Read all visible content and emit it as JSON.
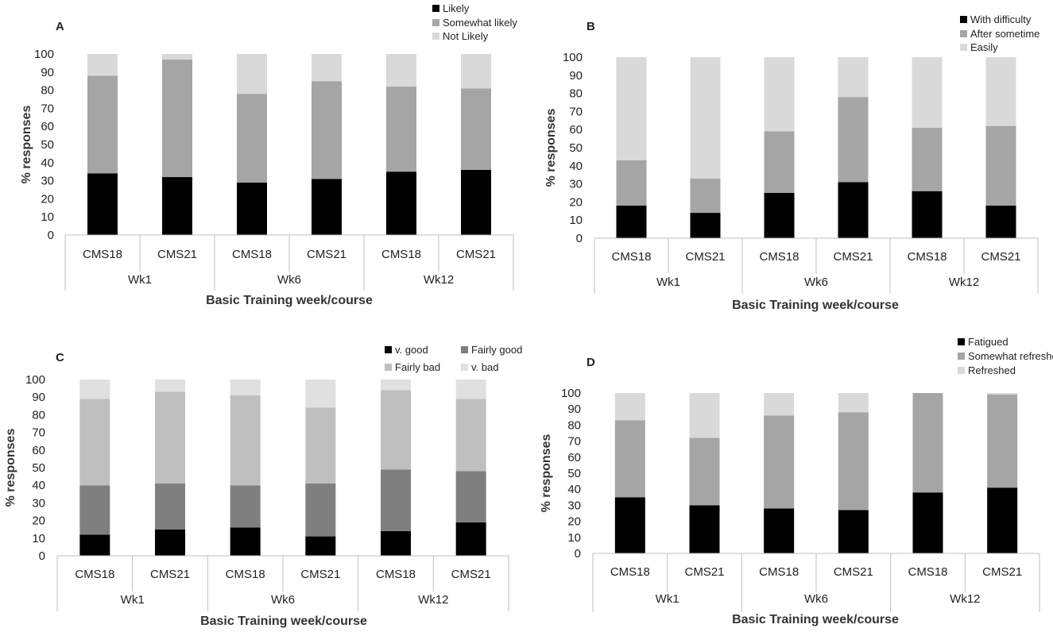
{
  "chart_data": [
    {
      "panel": "A",
      "type": "bar",
      "stacked": true,
      "ylabel": "% responses",
      "xlabel": "Basic Training week/course",
      "ylim": [
        0,
        100
      ],
      "yticks": [
        0,
        10,
        20,
        30,
        40,
        50,
        60,
        70,
        80,
        90,
        100
      ],
      "groups": [
        "Wk1",
        "Wk6",
        "Wk12"
      ],
      "categories": [
        "CMS18",
        "CMS21",
        "CMS18",
        "CMS21",
        "CMS18",
        "CMS21"
      ],
      "legend_position": "top-right",
      "series": [
        {
          "name": "Likely",
          "color": "#000000",
          "values": [
            34,
            32,
            29,
            31,
            35,
            36
          ]
        },
        {
          "name": "Somewhat likely",
          "color": "#a5a5a5",
          "values": [
            54,
            65,
            49,
            54,
            47,
            45
          ]
        },
        {
          "name": "Not Likely",
          "color": "#d9d9d9",
          "values": [
            12,
            3,
            22,
            15,
            18,
            19
          ]
        }
      ]
    },
    {
      "panel": "B",
      "type": "bar",
      "stacked": true,
      "ylabel": "% responses",
      "xlabel": "Basic Training week/course",
      "ylim": [
        0,
        100
      ],
      "yticks": [
        0,
        10,
        20,
        30,
        40,
        50,
        60,
        70,
        80,
        90,
        100
      ],
      "groups": [
        "Wk1",
        "Wk6",
        "Wk12"
      ],
      "categories": [
        "CMS18",
        "CMS21",
        "CMS18",
        "CMS21",
        "CMS18",
        "CMS21"
      ],
      "legend_position": "top-right",
      "series": [
        {
          "name": "With difficulty",
          "color": "#000000",
          "values": [
            18,
            14,
            25,
            31,
            26,
            18
          ]
        },
        {
          "name": "After sometime",
          "color": "#a5a5a5",
          "values": [
            25,
            19,
            34,
            47,
            35,
            44
          ]
        },
        {
          "name": "Easily",
          "color": "#d9d9d9",
          "values": [
            57,
            67,
            41,
            22,
            39,
            38
          ]
        }
      ]
    },
    {
      "panel": "C",
      "type": "bar",
      "stacked": true,
      "ylabel": "% responses",
      "xlabel": "Basic Training week/course",
      "ylim": [
        0,
        100
      ],
      "yticks": [
        0,
        10,
        20,
        30,
        40,
        50,
        60,
        70,
        80,
        90,
        100
      ],
      "groups": [
        "Wk1",
        "Wk6",
        "Wk12"
      ],
      "categories": [
        "CMS18",
        "CMS21",
        "CMS18",
        "CMS21",
        "CMS18",
        "CMS21"
      ],
      "legend_position": "top-right",
      "series": [
        {
          "name": "v. good",
          "color": "#000000",
          "values": [
            12,
            15,
            16,
            11,
            14,
            19
          ]
        },
        {
          "name": "Fairly good",
          "color": "#7f7f7f",
          "values": [
            28,
            26,
            24,
            30,
            35,
            29
          ]
        },
        {
          "name": "Fairly bad",
          "color": "#bfbfbf",
          "values": [
            49,
            52,
            51,
            43,
            45,
            41
          ]
        },
        {
          "name": "v. bad",
          "color": "#e0e0e0",
          "values": [
            11,
            7,
            9,
            16,
            6,
            11
          ]
        }
      ]
    },
    {
      "panel": "D",
      "type": "bar",
      "stacked": true,
      "ylabel": "% responses",
      "xlabel": "Basic Training week/course",
      "ylim": [
        0,
        100
      ],
      "yticks": [
        0,
        10,
        20,
        30,
        40,
        50,
        60,
        70,
        80,
        90,
        100
      ],
      "groups": [
        "Wk1",
        "Wk6",
        "Wk12"
      ],
      "categories": [
        "CMS18",
        "CMS21",
        "CMS18",
        "CMS21",
        "CMS18",
        "CMS21"
      ],
      "legend_position": "top-right",
      "series": [
        {
          "name": "Fatigued",
          "color": "#000000",
          "values": [
            35,
            30,
            28,
            27,
            38,
            41
          ]
        },
        {
          "name": "Somewhat refreshed",
          "color": "#a5a5a5",
          "values": [
            48,
            42,
            58,
            61,
            62,
            58
          ]
        },
        {
          "name": "Refreshed",
          "color": "#d9d9d9",
          "values": [
            17,
            28,
            14,
            12,
            0,
            1
          ]
        }
      ]
    }
  ]
}
